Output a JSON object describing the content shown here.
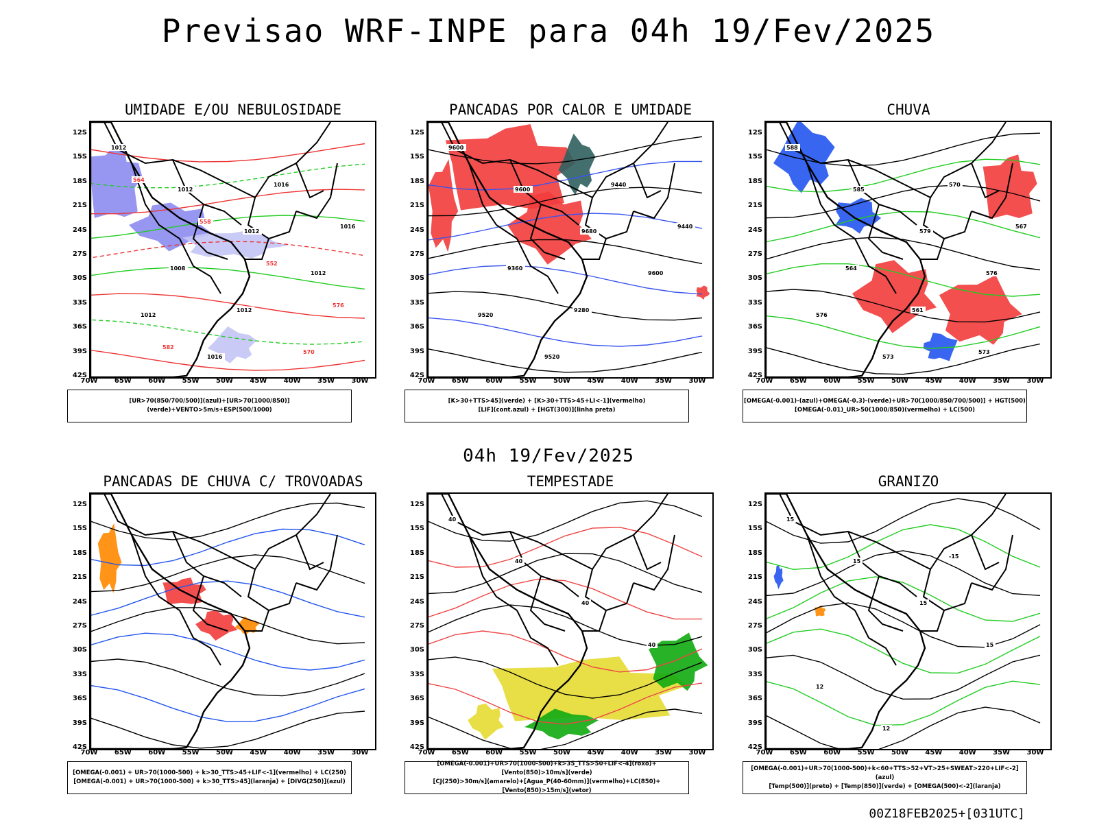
{
  "title": "Previsao WRF-INPE  para 04h 19/Fev/2025",
  "subtitle": "04h 19/Fev/2025",
  "footer": "00Z18FEB2025+[031UTC]",
  "y_ticks": [
    "12S",
    "15S",
    "18S",
    "21S",
    "24S",
    "27S",
    "30S",
    "33S",
    "36S",
    "39S",
    "42S"
  ],
  "x_ticks": [
    "70W",
    "65W",
    "60W",
    "55W",
    "50W",
    "45W",
    "40W",
    "35W",
    "30W"
  ],
  "panels": [
    {
      "id": "umidade",
      "title": "UMIDADE E/OU NEBULOSIDADE",
      "legend": [
        "[UR>70(850/700/500)](azul)+[UR>70(1000/850)](verde)+VENTO>5m/s+ESP(500/1000)"
      ],
      "contour_labels": [
        "1012",
        "1012",
        "1012",
        "1012",
        "1012",
        "1016",
        "1016",
        "1016",
        "1008",
        "1012",
        "570",
        "564",
        "558",
        "552",
        "576",
        "582"
      ],
      "colors": {
        "fill1": "#8c8cf0",
        "fill2": "#c4c4f5",
        "line1": "#22cc22",
        "line2": "#ee3333"
      }
    },
    {
      "id": "pancadas-calor",
      "title": "PANCADAS POR CALOR E UMIDADE",
      "legend": [
        "[K>30+TTS>45](verde) + [K>30+TTS>45+LI<-1](vermelho)",
        "[LIF](cont.azul) + [HGT(300)](linha preta)"
      ],
      "contour_labels": [
        "9600",
        "9600",
        "9680",
        "9600",
        "9520",
        "9520",
        "9440",
        "9440",
        "9360",
        "9280"
      ],
      "colors": {
        "fill1": "#f23c3c",
        "fill2": "#2f5f5f",
        "line1": "#3a55ee",
        "line2": "#000000"
      }
    },
    {
      "id": "chuva",
      "title": "CHUVA",
      "legend": [
        "[OMEGA(-0.001)-(azul)+OMEGA(-0.3)-(verde)+UR>70(1000/850/700/500)] + HGT(500)",
        "[OMEGA(-0.01)_UR>50(1000/850)(vermelho) + LC(500)"
      ],
      "contour_labels": [
        "588",
        "585",
        "579",
        "576",
        "576",
        "573",
        "570",
        "567",
        "564",
        "561",
        "573"
      ],
      "colors": {
        "fill1": "#f23c3c",
        "fill2": "#2255ee",
        "line1": "#22cc22",
        "line2": "#000000"
      }
    },
    {
      "id": "trovoadas",
      "title": "PANCADAS DE CHUVA C/ TROVOADAS",
      "legend": [
        "[OMEGA(-0.001) + UR>70(1000-500) + k>30_TTS>45+LIF<-1](vermelho) + LC(250)",
        "[OMEGA(-0.001) + UR>70(1000-500) + k>30_TTS>45](laranja) + [DIVG(250)](azul)"
      ],
      "contour_labels": [],
      "colors": {
        "fill1": "#f23c3c",
        "fill2": "#ff8800",
        "line1": "#2255ee",
        "line2": "#000000"
      }
    },
    {
      "id": "tempestade",
      "title": "TEMPESTADE",
      "legend": [
        "[OMEGA(-0.001)+UR>70(1000-500)+k>35_TTS>50+LIF<-4](roxo)+[Vento(850)>10m/s](verde)",
        "[CJ(250)>30m/s](amarelo)+[Agua_P(40-60mm)](vermelho)+LC(850)+[Vento(850)>15m/s](vetor)"
      ],
      "contour_labels": [
        "40",
        "40",
        "40",
        "40"
      ],
      "colors": {
        "fill1": "#e6dc32",
        "fill2": "#11aa11",
        "line1": "#ee4444",
        "line2": "#000000"
      }
    },
    {
      "id": "granizo",
      "title": "GRANIZO",
      "legend": [
        "[OMEGA(-0.001)+UR>70(1000-500)+k<60+TTS>52+VT>25+SWEAT>220+LIF<-2](azul)",
        "[Temp(500)](preto) + [Temp(850)](verde) + [OMEGA(500)<-2](laranja)"
      ],
      "contour_labels": [
        "15",
        "15",
        "15",
        "15",
        "12",
        "12",
        "-15"
      ],
      "colors": {
        "fill1": "#ff8800",
        "fill2": "#2255ee",
        "line1": "#22cc22",
        "line2": "#000000"
      }
    }
  ]
}
